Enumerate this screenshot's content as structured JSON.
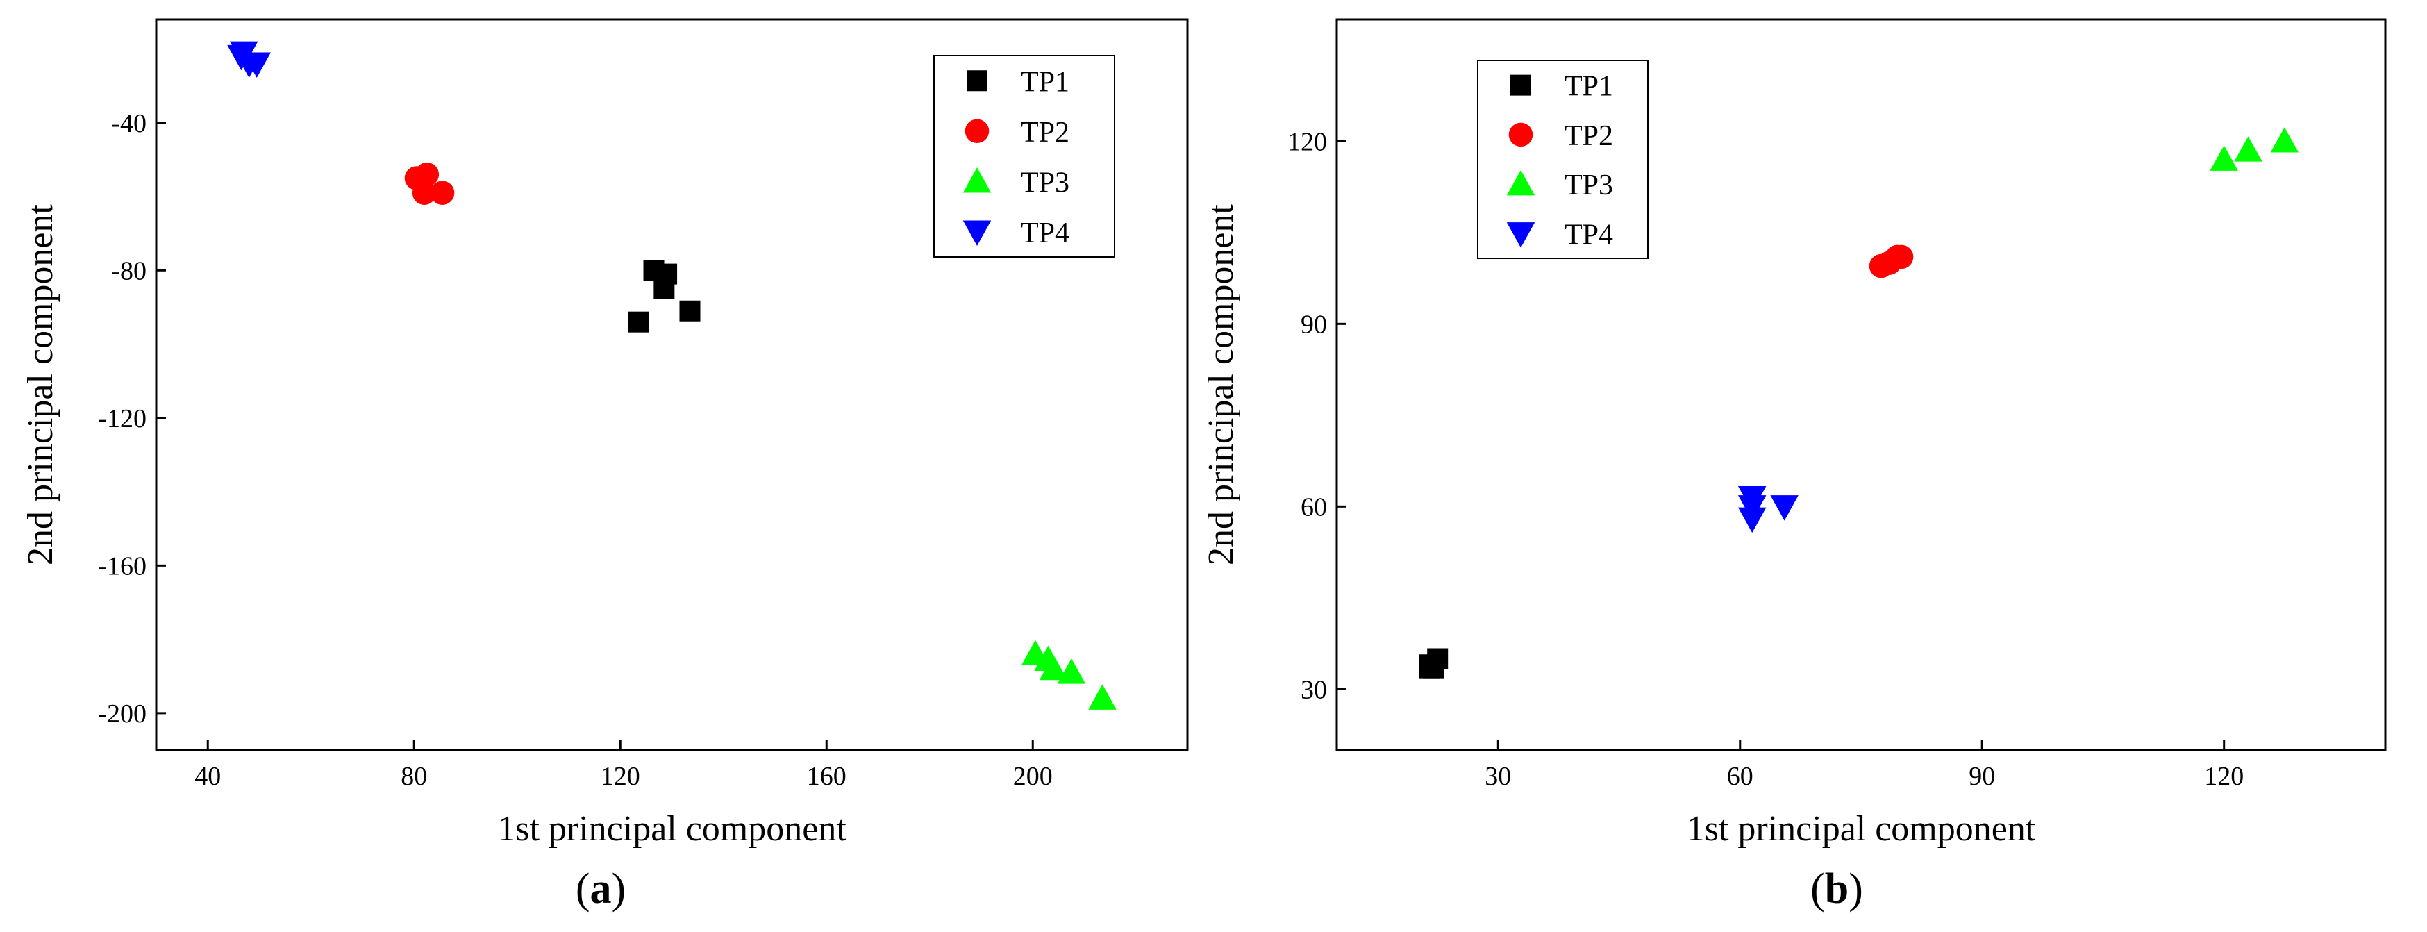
{
  "chart_data": [
    {
      "type": "scatter",
      "panel_label": "a",
      "xlabel": "1st principal component",
      "ylabel": "2nd principal component",
      "xlim": [
        30,
        230
      ],
      "ylim": [
        -210,
        -12
      ],
      "xticks": [
        40,
        80,
        120,
        160,
        200
      ],
      "yticks": [
        -40,
        -80,
        -120,
        -160,
        -200
      ],
      "legend_position": "top-right",
      "series": [
        {
          "name": "TP1",
          "marker": "square",
          "color": "#000000",
          "x": [
            126.5,
            129,
            128.5,
            123.5,
            133.5
          ],
          "y": [
            -80,
            -81,
            -85,
            -94,
            -91
          ]
        },
        {
          "name": "TP2",
          "marker": "circle",
          "color": "#ff0000",
          "x": [
            80.5,
            82.5,
            82,
            85.5
          ],
          "y": [
            -55,
            -54,
            -59,
            -59
          ]
        },
        {
          "name": "TP3",
          "marker": "triangle-up",
          "color": "#00ff00",
          "x": [
            200.5,
            203,
            204,
            207.5,
            213.5
          ],
          "y": [
            -184,
            -185.5,
            -188,
            -189,
            -196
          ]
        },
        {
          "name": "TP4",
          "marker": "triangle-down",
          "color": "#0000ff",
          "x": [
            46.5,
            48,
            49.5,
            47
          ],
          "y": [
            -22,
            -24,
            -24,
            -21
          ]
        }
      ]
    },
    {
      "type": "scatter",
      "panel_label": "b",
      "xlabel": "1st principal component",
      "ylabel": "2nd principal component",
      "xlim": [
        10,
        140
      ],
      "ylim": [
        20,
        140
      ],
      "xticks": [
        30,
        60,
        90,
        120
      ],
      "yticks": [
        30,
        60,
        90,
        120
      ],
      "legend_position": "top-left",
      "series": [
        {
          "name": "TP1",
          "marker": "square",
          "color": "#000000",
          "x": [
            21.5,
            22.5,
            22,
            21.5
          ],
          "y": [
            34,
            35,
            33.5,
            33.5
          ]
        },
        {
          "name": "TP2",
          "marker": "circle",
          "color": "#ff0000",
          "x": [
            77.5,
            78.5,
            80,
            79.5
          ],
          "y": [
            99.5,
            100,
            101,
            101
          ]
        },
        {
          "name": "TP3",
          "marker": "triangle-up",
          "color": "#00ff00",
          "x": [
            120,
            123,
            127.5
          ],
          "y": [
            117,
            118.5,
            120
          ]
        },
        {
          "name": "TP4",
          "marker": "triangle-down",
          "color": "#0000ff",
          "x": [
            61.5,
            65.5,
            61.5,
            61.5
          ],
          "y": [
            61.5,
            60,
            58,
            60
          ]
        }
      ]
    }
  ]
}
